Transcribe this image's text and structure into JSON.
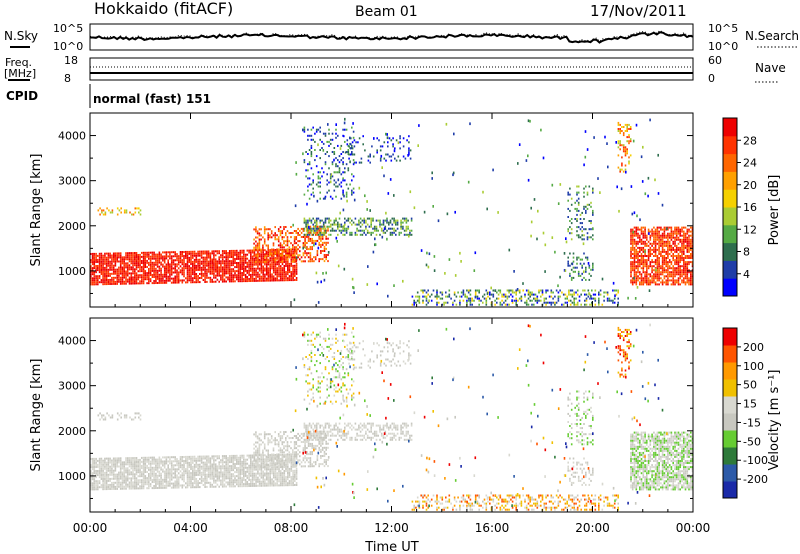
{
  "header": {
    "station": "Hokkaido (fitACF)",
    "beam": "Beam 01",
    "date": "17/Nov/2011"
  },
  "top_panels": {
    "nsky_label": "N.Sky",
    "nsearch_label": "N.Search",
    "noise_ticks": [
      "10^5",
      "10^0"
    ],
    "freq_label_line1": "Freq.",
    "freq_label_line2": "[MHz]",
    "freq_ticks": [
      "18",
      "8"
    ],
    "nave_label": "Nave",
    "nave_ticks": [
      "60",
      "0"
    ],
    "cpid_label": "CPID",
    "cpid_text": "normal (fast) 151"
  },
  "colors": {
    "power_scale": [
      "#0000ff",
      "#1f3da8",
      "#2e6e4e",
      "#55aa44",
      "#aacc33",
      "#f5d000",
      "#ffa000",
      "#ff6600",
      "#ff3300",
      "#ee0000"
    ],
    "velocity_scale": [
      "#1a2aa8",
      "#2c5aa8",
      "#2e7a3a",
      "#66cc33",
      "#c8c8c0",
      "#d8d8d0",
      "#f0c000",
      "#ff9900",
      "#ff5500",
      "#ee0000"
    ]
  },
  "chart_data": [
    {
      "type": "heatmap",
      "name": "power",
      "ylabel": "Slant Range [km]",
      "y_ticks": [
        "4000",
        "3000",
        "2000",
        "1000"
      ],
      "yrange": [
        200,
        4500
      ],
      "colorbar_label": "Power [dB]",
      "colorbar_ticks": [
        "28",
        "24",
        "20",
        "16",
        "12",
        "8",
        "4"
      ],
      "colorbar_range": [
        0,
        32
      ]
    },
    {
      "type": "heatmap",
      "name": "velocity",
      "ylabel": "Slant Range [km]",
      "y_ticks": [
        "4000",
        "3000",
        "2000",
        "1000"
      ],
      "yrange": [
        200,
        4500
      ],
      "colorbar_label": "Velocity [m s⁻¹]",
      "colorbar_ticks": [
        "200",
        "100",
        "50",
        "15",
        "-15",
        "-50",
        "-100",
        "-200"
      ]
    }
  ],
  "xaxis": {
    "label": "Time UT",
    "ticks": [
      "00:00",
      "04:00",
      "08:00",
      "12:00",
      "16:00",
      "20:00",
      "00:00"
    ],
    "range_hours": [
      0,
      24
    ]
  }
}
